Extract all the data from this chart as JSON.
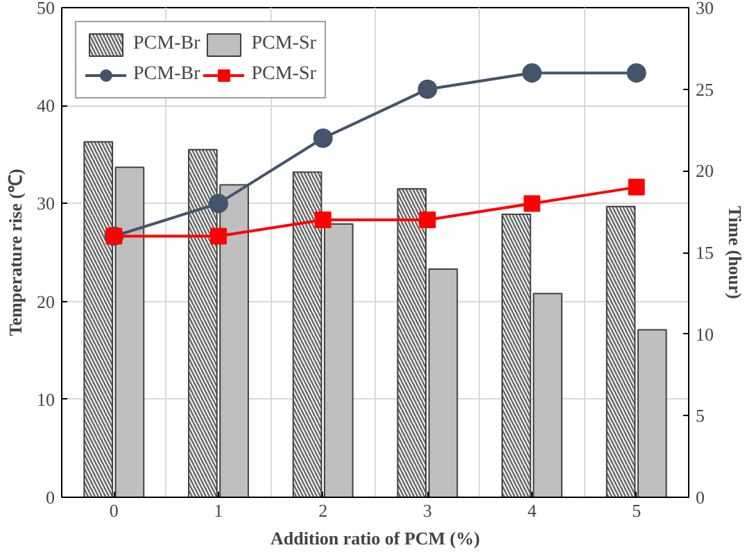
{
  "chart_data": {
    "type": "bar",
    "xlabel": "Addition ratio of PCM (%)",
    "ylabel": "Temperature rise (℃)",
    "y2label": "Time (hour)",
    "categories": [
      "0",
      "1",
      "2",
      "3",
      "4",
      "5"
    ],
    "ylim": [
      0,
      50
    ],
    "yticks": [
      0,
      10,
      20,
      30,
      40,
      50
    ],
    "y2lim": [
      0,
      30
    ],
    "y2ticks": [
      0,
      5,
      10,
      15,
      20,
      25,
      30
    ],
    "grid": true,
    "legend": "top left",
    "series": [
      {
        "name": "PCM-Br",
        "color": "#e8e8e8",
        "values": [
          36.3,
          35.5,
          33.2,
          31.5,
          28.9,
          29.7
        ]
      },
      {
        "name": "PCM-Sr",
        "color": "#bfbfbf",
        "values": [
          33.7,
          31.9,
          27.9,
          23.3,
          20.8,
          17.1
        ]
      },
      {
        "name": "PCM-Br",
        "type": "line",
        "axis": "y2",
        "marker": "circle",
        "color": "#44546a",
        "values": [
          16,
          18,
          22,
          25,
          26,
          26
        ]
      },
      {
        "name": "PCM-Sr",
        "type": "line",
        "axis": "y2",
        "marker": "square",
        "color": "#ff0000",
        "values": [
          16,
          16,
          17,
          17,
          18,
          19
        ]
      }
    ]
  }
}
